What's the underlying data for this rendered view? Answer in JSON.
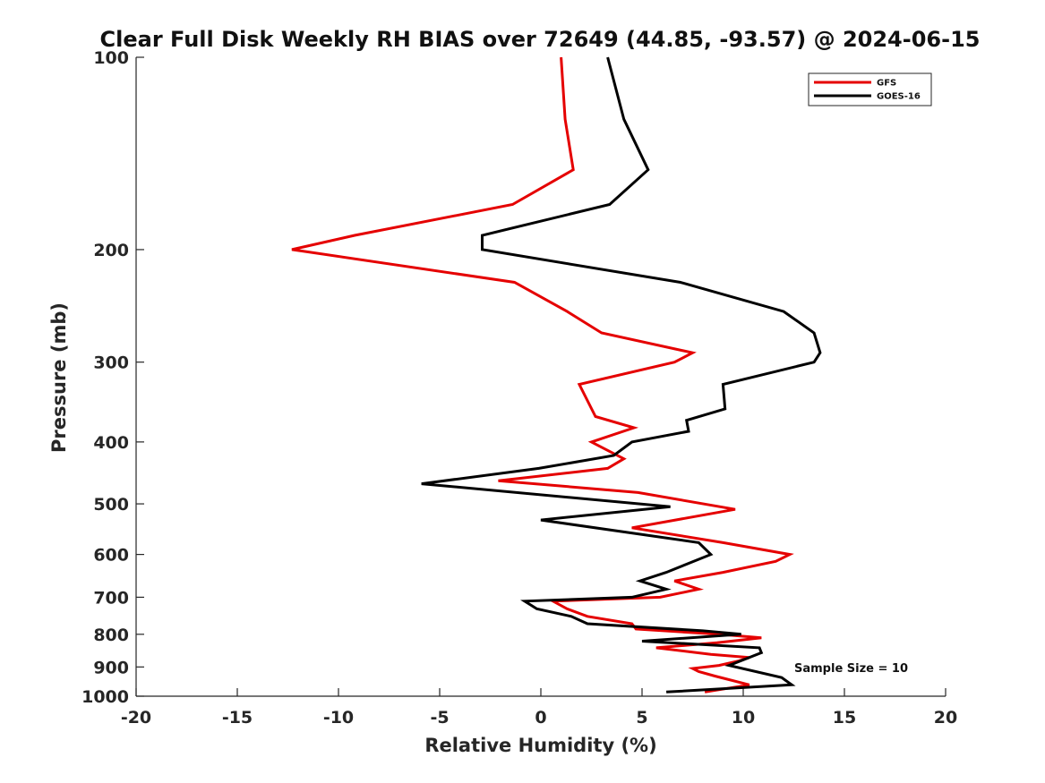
{
  "chart_data": {
    "type": "line",
    "title": "Clear Full Disk Weekly RH BIAS over 72649 (44.85, -93.57) @ 2024-06-15",
    "xlabel": "Relative Humidity (%)",
    "ylabel": "Pressure (mb)",
    "xlim": [
      -20,
      20
    ],
    "ylim": [
      1000,
      100
    ],
    "y_scale": "log",
    "y_reversed": true,
    "xticks": [
      -20,
      -15,
      -10,
      -5,
      0,
      5,
      10,
      15,
      20
    ],
    "yticks": [
      100,
      200,
      300,
      400,
      500,
      600,
      700,
      800,
      900,
      1000
    ],
    "grid": false,
    "legend_position": "top-right",
    "annotation": "Sample Size = 10",
    "series": [
      {
        "name": "GFS",
        "color": "#e50000",
        "points": [
          [
            1.0,
            100
          ],
          [
            1.2,
            125
          ],
          [
            1.6,
            150
          ],
          [
            -1.4,
            170
          ],
          [
            -9.2,
            190
          ],
          [
            -12.3,
            200
          ],
          [
            -1.3,
            225
          ],
          [
            1.3,
            250
          ],
          [
            3.0,
            270
          ],
          [
            7.5,
            290
          ],
          [
            6.6,
            300
          ],
          [
            1.9,
            325
          ],
          [
            2.7,
            365
          ],
          [
            4.6,
            380
          ],
          [
            2.5,
            400
          ],
          [
            4.1,
            425
          ],
          [
            3.3,
            440
          ],
          [
            -2.1,
            460
          ],
          [
            4.8,
            480
          ],
          [
            9.6,
            510
          ],
          [
            4.5,
            545
          ],
          [
            9.0,
            575
          ],
          [
            12.3,
            600
          ],
          [
            11.6,
            615
          ],
          [
            9.0,
            640
          ],
          [
            6.6,
            660
          ],
          [
            7.8,
            680
          ],
          [
            5.9,
            700
          ],
          [
            0.6,
            710
          ],
          [
            1.3,
            730
          ],
          [
            2.3,
            750
          ],
          [
            4.5,
            770
          ],
          [
            4.7,
            785
          ],
          [
            8.8,
            800
          ],
          [
            10.9,
            810
          ],
          [
            8.7,
            825
          ],
          [
            5.7,
            840
          ],
          [
            8.4,
            860
          ],
          [
            10.3,
            870
          ],
          [
            9.8,
            880
          ],
          [
            8.8,
            895
          ],
          [
            7.5,
            905
          ],
          [
            7.8,
            915
          ],
          [
            8.6,
            930
          ],
          [
            10.3,
            960
          ],
          [
            8.1,
            985
          ]
        ]
      },
      {
        "name": "GOES-16",
        "color": "#000000",
        "points": [
          [
            3.3,
            100
          ],
          [
            4.1,
            125
          ],
          [
            5.3,
            150
          ],
          [
            3.4,
            170
          ],
          [
            -2.9,
            190
          ],
          [
            -2.9,
            200
          ],
          [
            6.9,
            225
          ],
          [
            12.0,
            250
          ],
          [
            13.5,
            270
          ],
          [
            13.8,
            290
          ],
          [
            13.5,
            300
          ],
          [
            9.0,
            325
          ],
          [
            9.1,
            355
          ],
          [
            7.2,
            370
          ],
          [
            7.3,
            385
          ],
          [
            4.5,
            400
          ],
          [
            3.6,
            420
          ],
          [
            -0.1,
            440
          ],
          [
            -5.9,
            465
          ],
          [
            6.4,
            505
          ],
          [
            0.0,
            530
          ],
          [
            7.8,
            575
          ],
          [
            8.4,
            600
          ],
          [
            6.2,
            640
          ],
          [
            4.9,
            660
          ],
          [
            6.2,
            680
          ],
          [
            4.5,
            700
          ],
          [
            -0.8,
            710
          ],
          [
            -0.2,
            730
          ],
          [
            1.5,
            750
          ],
          [
            2.3,
            770
          ],
          [
            8.0,
            790
          ],
          [
            9.9,
            800
          ],
          [
            5.0,
            820
          ],
          [
            10.8,
            840
          ],
          [
            10.9,
            855
          ],
          [
            9.3,
            895
          ],
          [
            11.9,
            935
          ],
          [
            12.4,
            960
          ],
          [
            6.2,
            985
          ]
        ]
      }
    ]
  }
}
